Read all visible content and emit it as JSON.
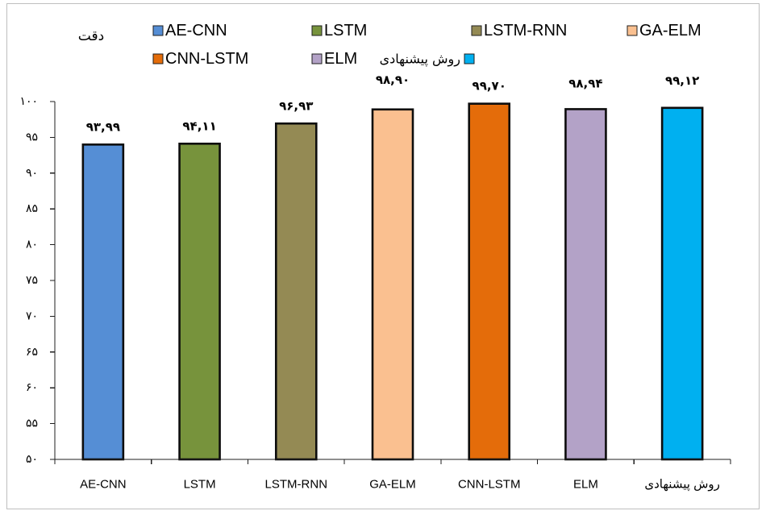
{
  "chart_data": {
    "type": "bar",
    "ylabel": "دقت",
    "categories": [
      "AE-CNN",
      "LSTM",
      "LSTM-RNN",
      "GA-ELM",
      "CNN-LSTM",
      "ELM",
      "روش پیشنهادی"
    ],
    "values": [
      93.99,
      94.11,
      96.93,
      98.9,
      99.7,
      98.94,
      99.12
    ],
    "data_labels": [
      "۹۳,۹۹",
      "۹۴,۱۱",
      "۹۶,۹۳",
      "۹۸,۹۰",
      "۹۹,۷۰",
      "۹۸,۹۴",
      "۹۹,۱۲"
    ],
    "colors": [
      "#558ED5",
      "#77933C",
      "#948A54",
      "#FAC090",
      "#E46C0A",
      "#B3A2C7",
      "#00B0F0"
    ],
    "ylim": [
      50,
      100
    ],
    "yticks": [
      {
        "value": 50,
        "label": "۵۰"
      },
      {
        "value": 55,
        "label": "۵۵"
      },
      {
        "value": 60,
        "label": "۶۰"
      },
      {
        "value": 65,
        "label": "۶۵"
      },
      {
        "value": 70,
        "label": "۷۰"
      },
      {
        "value": 75,
        "label": "۷۵"
      },
      {
        "value": 80,
        "label": "۸۰"
      },
      {
        "value": 85,
        "label": "۸۵"
      },
      {
        "value": 90,
        "label": "۹۰"
      },
      {
        "value": 95,
        "label": "۹۵"
      },
      {
        "value": 100,
        "label": "۱۰۰"
      }
    ],
    "grid": false,
    "legend": {
      "placement": "top",
      "entries": [
        {
          "label": "AE-CNN",
          "color": "#558ED5"
        },
        {
          "label": "LSTM",
          "color": "#77933C"
        },
        {
          "label": "LSTM-RNN",
          "color": "#948A54"
        },
        {
          "label": "GA-ELM",
          "color": "#FAC090"
        },
        {
          "label": "CNN-LSTM",
          "color": "#E46C0A"
        },
        {
          "label": "ELM",
          "color": "#B3A2C7"
        },
        {
          "label": "روش پیشنهادی",
          "color": "#00B0F0"
        }
      ]
    }
  }
}
